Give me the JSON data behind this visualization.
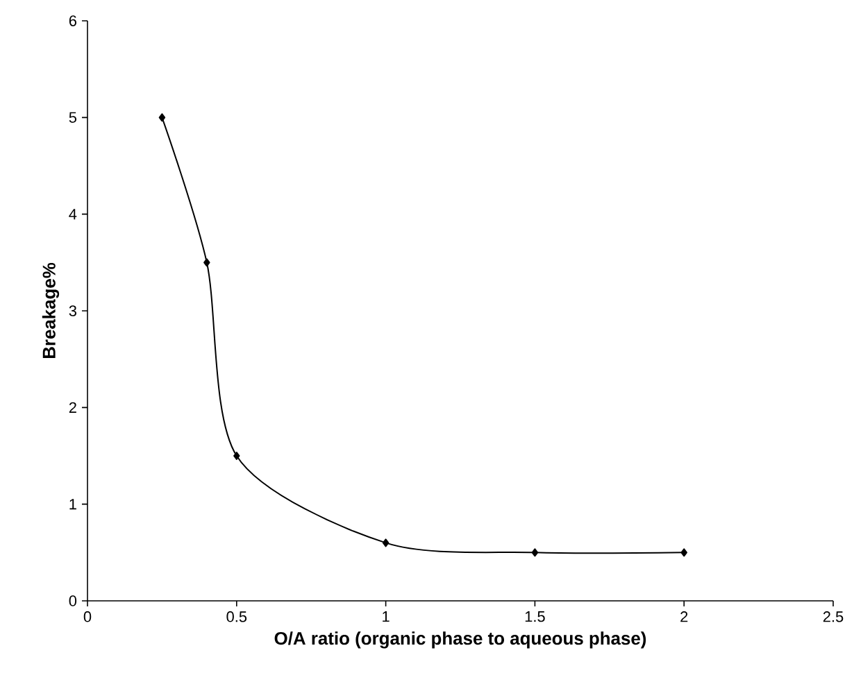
{
  "chart_data": {
    "type": "line",
    "xlabel": "O/A ratio (organic phase to aqueous phase)",
    "ylabel": "Breakage%",
    "x": [
      0.25,
      0.4,
      0.5,
      1,
      1.5,
      2
    ],
    "series": [
      {
        "color": "#000000",
        "values": [
          5,
          3.5,
          1.5,
          0.6,
          0.5,
          0.5
        ]
      }
    ],
    "xlim": [
      0,
      2.5
    ],
    "xticks": [
      0,
      0.5,
      1,
      1.5,
      2,
      2.5
    ],
    "ylim": [
      0,
      6
    ],
    "yticks": [
      0,
      1,
      2,
      3,
      4,
      5,
      6
    ],
    "grid": false,
    "marker": "diamond",
    "line_style": "solid"
  }
}
